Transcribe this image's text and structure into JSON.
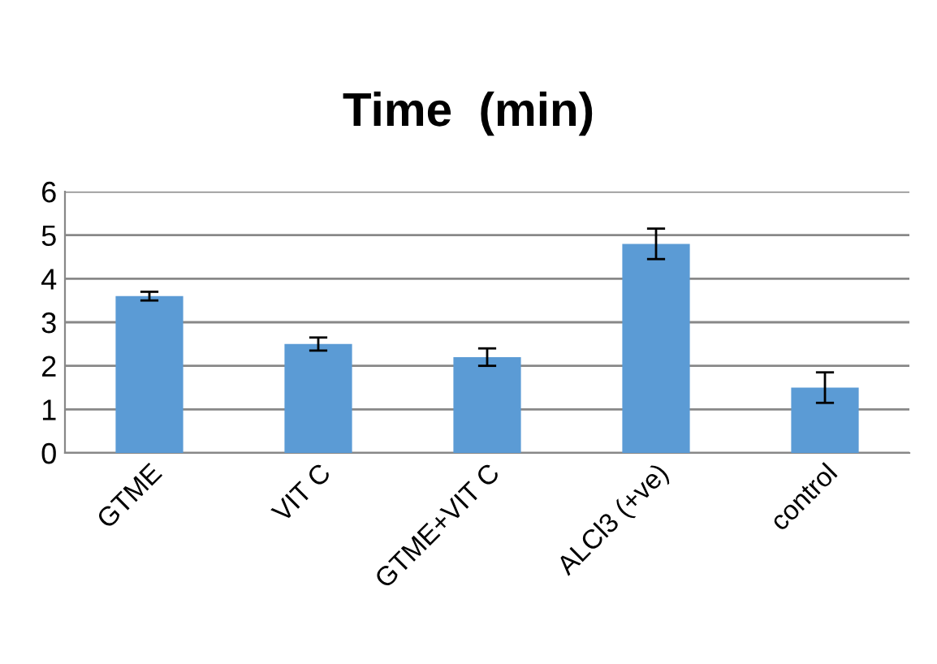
{
  "chart_data": {
    "type": "bar",
    "title": "Time  (min)",
    "categories": [
      "GTME",
      "VIT C",
      "GTME+VIT C",
      "ALCl3 (+ve)",
      "control"
    ],
    "values": [
      3.6,
      2.5,
      2.2,
      4.8,
      1.5
    ],
    "errors": [
      0.1,
      0.15,
      0.2,
      0.35,
      0.35
    ],
    "color": "#5b9bd5",
    "ylim": [
      0,
      6
    ],
    "yticks": [
      0,
      1,
      2,
      3,
      4,
      5,
      6
    ],
    "grid": "y"
  }
}
